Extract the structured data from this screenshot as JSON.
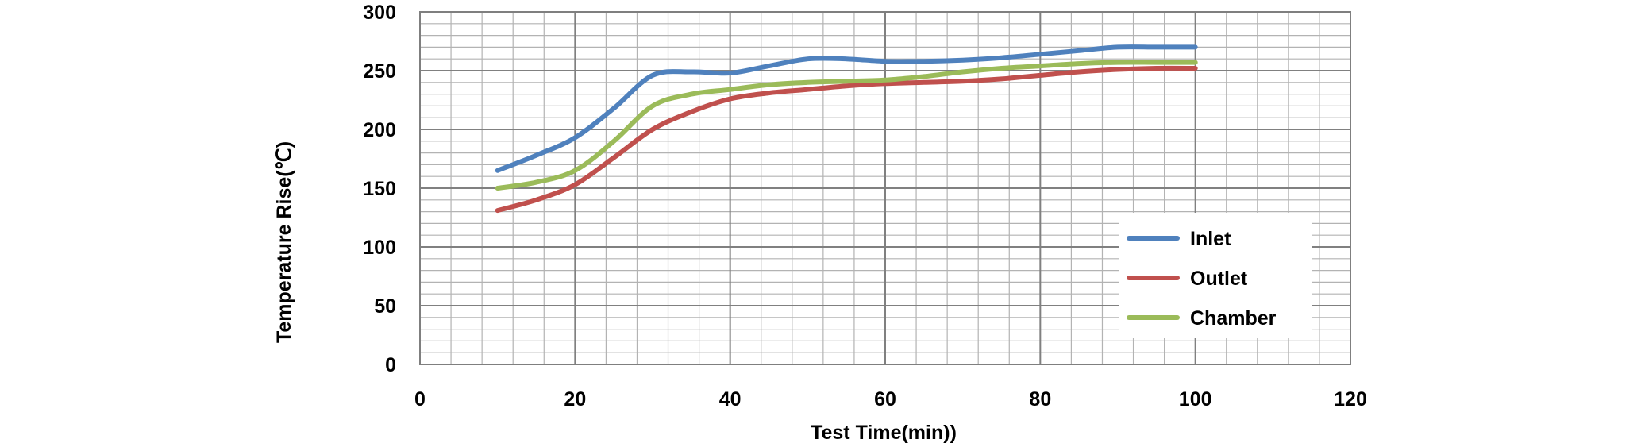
{
  "chart_data": {
    "type": "line",
    "title": "",
    "xlabel": "Test Time(min))",
    "ylabel": "Temperature Rise(℃)",
    "xlim": [
      0,
      120
    ],
    "ylim": [
      0,
      300
    ],
    "xticks": [
      0,
      20,
      40,
      60,
      80,
      100,
      120
    ],
    "yticks": [
      0,
      50,
      100,
      150,
      200,
      250,
      300
    ],
    "xtick_labels": [
      "0",
      "20",
      "40",
      "60",
      "80",
      "100",
      "120"
    ],
    "ytick_labels": [
      "0",
      "50",
      "100",
      "150",
      "200",
      "250",
      "300"
    ],
    "grid": true,
    "legend_position": "bottom-right",
    "series": [
      {
        "name": "Inlet",
        "color": "#4F81BD",
        "x": [
          10,
          15,
          20,
          25,
          30,
          35,
          40,
          45,
          50,
          55,
          60,
          65,
          70,
          75,
          80,
          85,
          90,
          95,
          100
        ],
        "y": [
          165,
          178,
          193,
          218,
          246,
          249,
          248,
          254,
          260,
          260,
          258,
          258,
          259,
          261,
          264,
          267,
          270,
          270,
          270
        ]
      },
      {
        "name": "Outlet",
        "color": "#C0504D",
        "x": [
          10,
          15,
          20,
          25,
          30,
          35,
          40,
          45,
          50,
          55,
          60,
          65,
          70,
          75,
          80,
          85,
          90,
          95,
          100
        ],
        "y": [
          131,
          140,
          153,
          176,
          200,
          215,
          226,
          231,
          234,
          237,
          239,
          240,
          241,
          243,
          246,
          249,
          251,
          252,
          252
        ]
      },
      {
        "name": "Chamber",
        "color": "#9BBB59",
        "x": [
          10,
          15,
          20,
          25,
          30,
          35,
          40,
          45,
          50,
          55,
          60,
          65,
          70,
          75,
          80,
          85,
          90,
          95,
          100
        ],
        "y": [
          150,
          155,
          165,
          190,
          220,
          230,
          234,
          238,
          240,
          241,
          242,
          245,
          249,
          252,
          254,
          256,
          257,
          257,
          257
        ]
      }
    ]
  }
}
